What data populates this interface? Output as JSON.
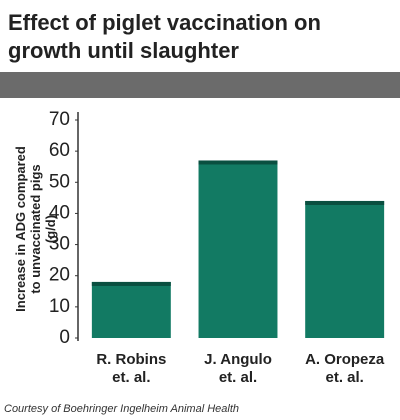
{
  "chart_data": {
    "type": "bar",
    "title": "Effect of piglet vaccination on growth until slaughter",
    "y_label": "Increase in ADG compared to unvaccinated pigs (g/d)",
    "categories": [
      "R. Robins et. al.",
      "J. Angulo et. al.",
      "A. Oropeza et. al."
    ],
    "values": [
      18,
      57,
      44
    ],
    "color": "#127a63",
    "ylim": [
      0,
      70
    ],
    "yticks": [
      0,
      10,
      20,
      30,
      40,
      50,
      60,
      70
    ],
    "source": "Courtesy of Boehringer Ingelheim Animal Health"
  }
}
